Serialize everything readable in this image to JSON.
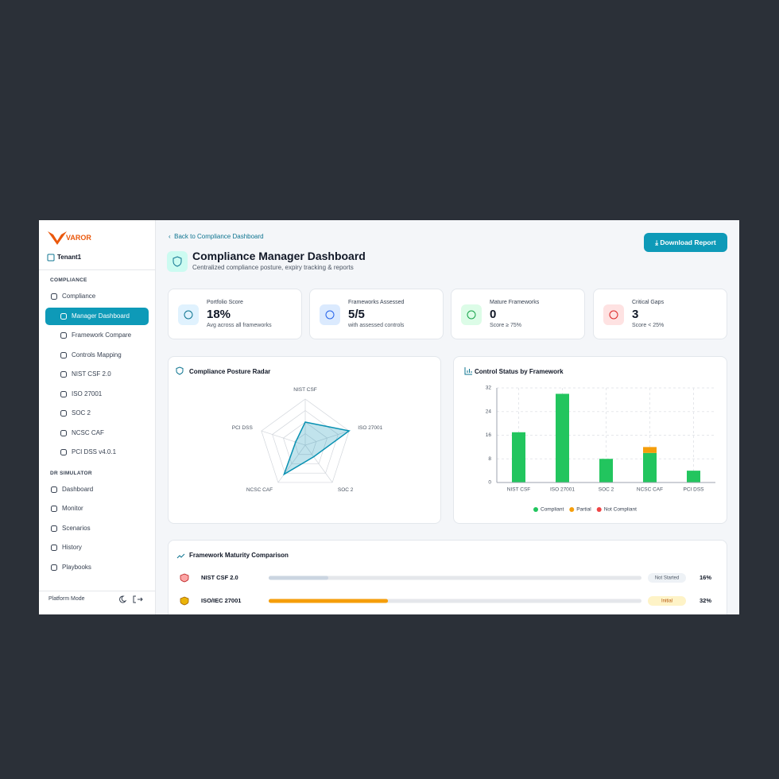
{
  "sidebar": {
    "logo": "VAROR",
    "tenant": "Tenant1",
    "sections": [
      {
        "title": "COMPLIANCE",
        "items": [
          "Compliance",
          "Manager Dashboard",
          "Framework Compare",
          "Controls Mapping",
          "NIST CSF 2.0",
          "ISO 27001",
          "SOC 2",
          "NCSC CAF",
          "PCI DSS v4.0.1"
        ]
      },
      {
        "title": "DR SIMULATOR",
        "items": [
          "Dashboard",
          "Monitor",
          "Scenarios",
          "History",
          "Playbooks"
        ]
      }
    ],
    "active": "Manager Dashboard",
    "footer": "Platform Mode"
  },
  "header": {
    "back": "Back to Compliance Dashboard",
    "title": "Compliance Manager Dashboard",
    "subtitle": "Centralized compliance posture, expiry tracking & reports",
    "button": "Download Report"
  },
  "stats": [
    {
      "label": "Portfolio Score",
      "value": "18%",
      "note": "Avg across all frameworks"
    },
    {
      "label": "Frameworks Assessed",
      "value": "5/5",
      "note": "with assessed controls"
    },
    {
      "label": "Mature Frameworks",
      "value": "0",
      "note": "Score ≥ 75%"
    },
    {
      "label": "Critical Gaps",
      "value": "3",
      "note": "Score < 25%"
    }
  ],
  "chart_data": [
    {
      "type": "radar",
      "title": "Compliance Posture Radar",
      "categories": [
        "NIST CSF",
        "ISO 27001",
        "SOC 2",
        "NCSC CAF",
        "PCI DSS"
      ],
      "values": [
        16,
        32,
        10,
        25,
        7
      ],
      "rlim": [
        0,
        32
      ],
      "color": "#0891b2"
    },
    {
      "type": "bar",
      "stacked": true,
      "title": "Control Status by Framework",
      "categories": [
        "NIST CSF",
        "ISO 27001",
        "SOC 2",
        "NCSC CAF",
        "PCI DSS"
      ],
      "series": [
        {
          "name": "Compliant",
          "color": "#22c55e",
          "values": [
            17,
            30,
            8,
            10,
            4
          ]
        },
        {
          "name": "Partial",
          "color": "#f59e0b",
          "values": [
            0,
            0,
            0,
            2,
            0
          ]
        },
        {
          "name": "Not Compliant",
          "color": "#ef4444",
          "values": [
            0,
            0,
            0,
            0,
            0
          ]
        }
      ],
      "ylim": [
        0,
        32
      ],
      "yticks": [
        0,
        8,
        16,
        24,
        32
      ],
      "grid": true
    }
  ],
  "maturity": {
    "title": "Framework Maturity Comparison",
    "rows": [
      {
        "name": "NIST CSF 2.0",
        "status": "Not Started",
        "value": 16,
        "value_label": "16%",
        "color": "#cbd5e1"
      },
      {
        "name": "ISO/IEC 27001",
        "status": "Initial",
        "value": 32,
        "value_label": "32%",
        "color": "#f59e0b"
      }
    ]
  }
}
